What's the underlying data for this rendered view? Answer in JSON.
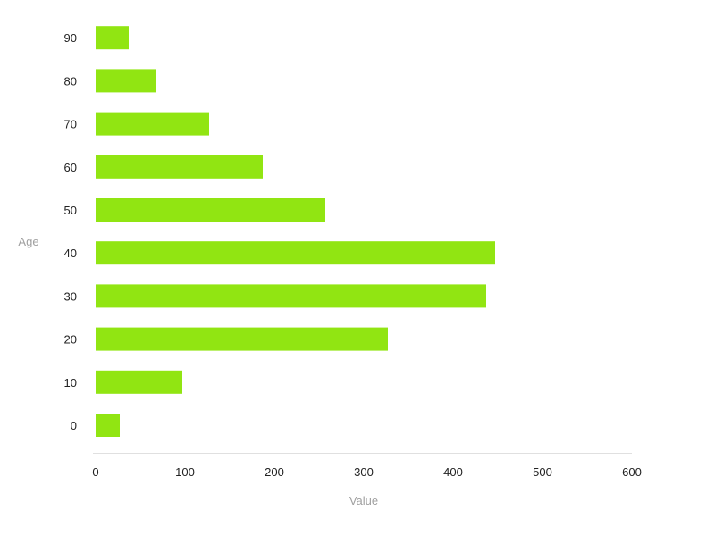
{
  "chart_data": {
    "type": "bar",
    "orientation": "horizontal",
    "categories": [
      "0",
      "10",
      "20",
      "30",
      "40",
      "50",
      "60",
      "70",
      "80",
      "90"
    ],
    "values": [
      27,
      97,
      327,
      437,
      447,
      257,
      187,
      127,
      67,
      37
    ],
    "xlabel": "Value",
    "ylabel": "Age",
    "xlim": [
      0,
      600
    ],
    "x_ticks": [
      "0",
      "100",
      "200",
      "300",
      "400",
      "500",
      "600"
    ],
    "grid": false,
    "legend": "none",
    "bar_color": "#91e512"
  }
}
